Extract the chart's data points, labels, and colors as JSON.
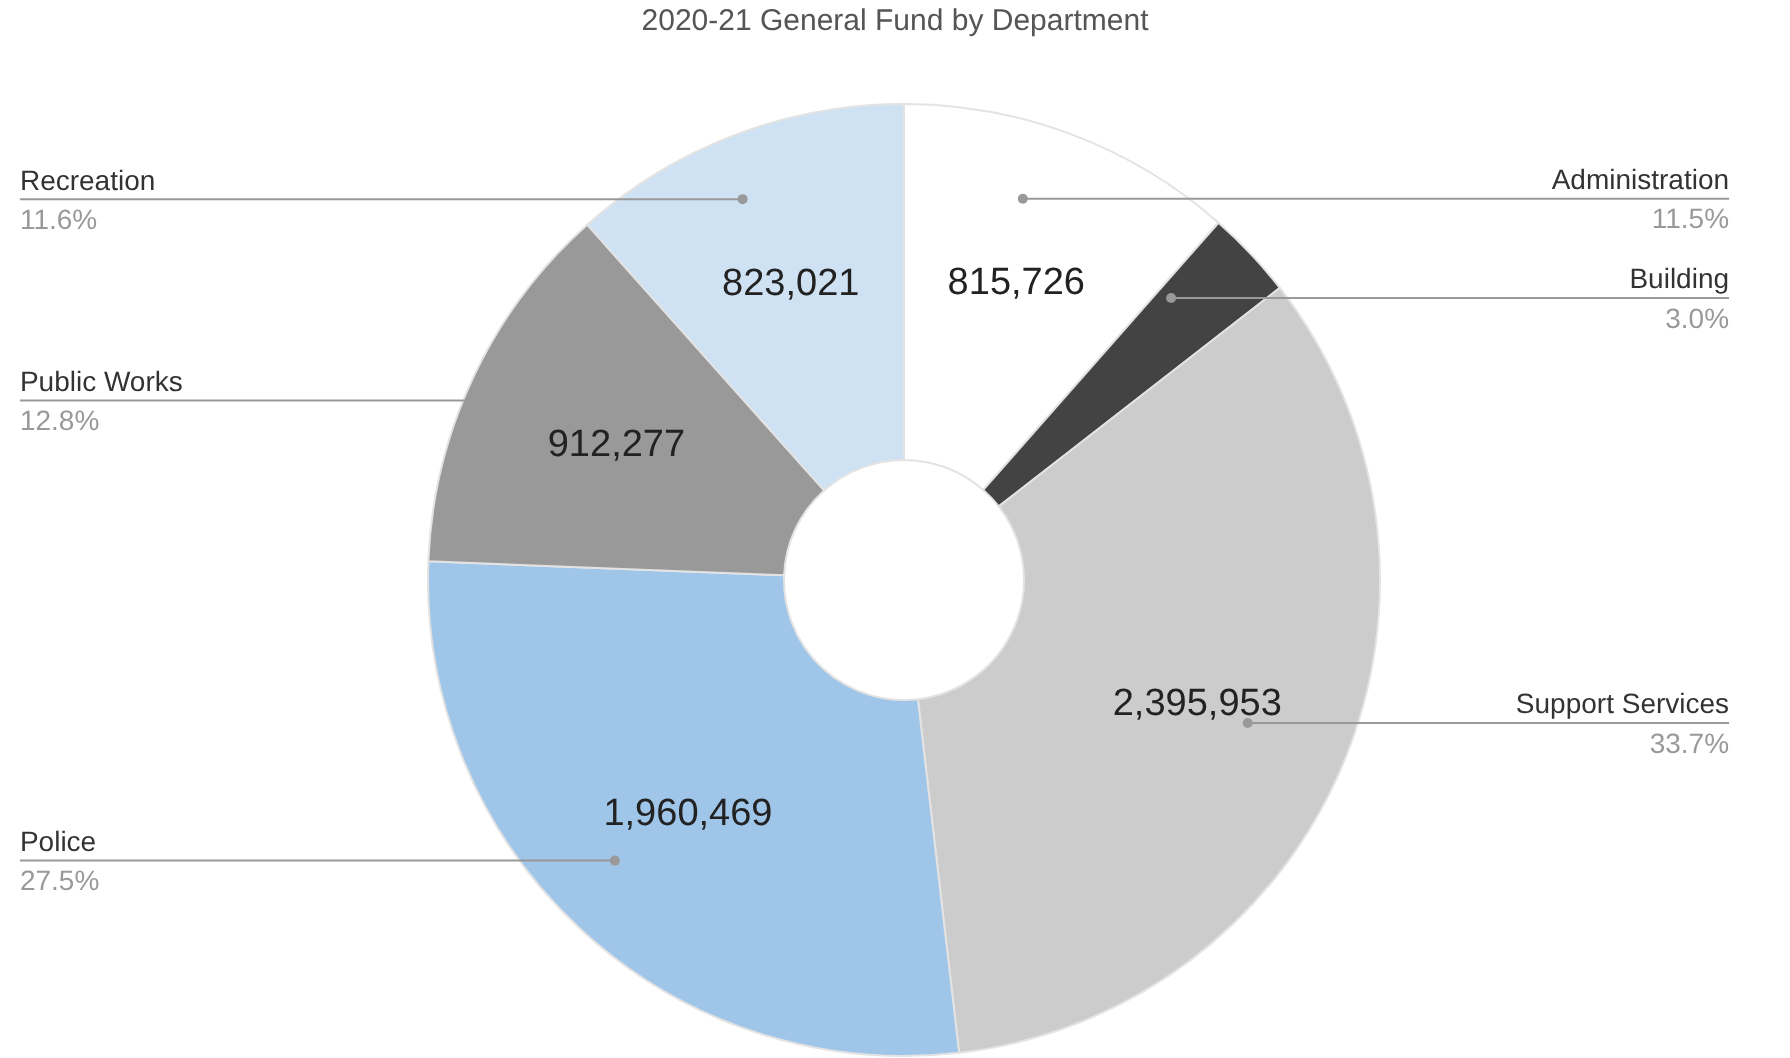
{
  "chart_data": {
    "type": "donut",
    "title": "2020-21 General Fund by Department",
    "categories": [
      "Administration",
      "Building",
      "Support Services",
      "Police",
      "Public Works",
      "Recreation"
    ],
    "values": [
      11.5,
      3.0,
      33.7,
      27.5,
      12.8,
      11.6
    ],
    "value_labels": [
      "11.5%",
      "3.0%",
      "33.7%",
      "27.5%",
      "12.8%",
      "11.6%"
    ],
    "colors": [
      "#ffffff",
      "#434343",
      "#cccccc",
      "#9fc5e8",
      "#999999",
      "#cfe2f3"
    ],
    "annotations": [
      {
        "text": "815,726",
        "x": "Administration"
      },
      {
        "text": "2,395,953",
        "x": "Support Services"
      },
      {
        "text": "1,960,469",
        "x": "Police"
      },
      {
        "text": "912,277",
        "x": "Public Works"
      },
      {
        "text": "823,021",
        "x": "Recreation"
      }
    ],
    "legend": false
  }
}
